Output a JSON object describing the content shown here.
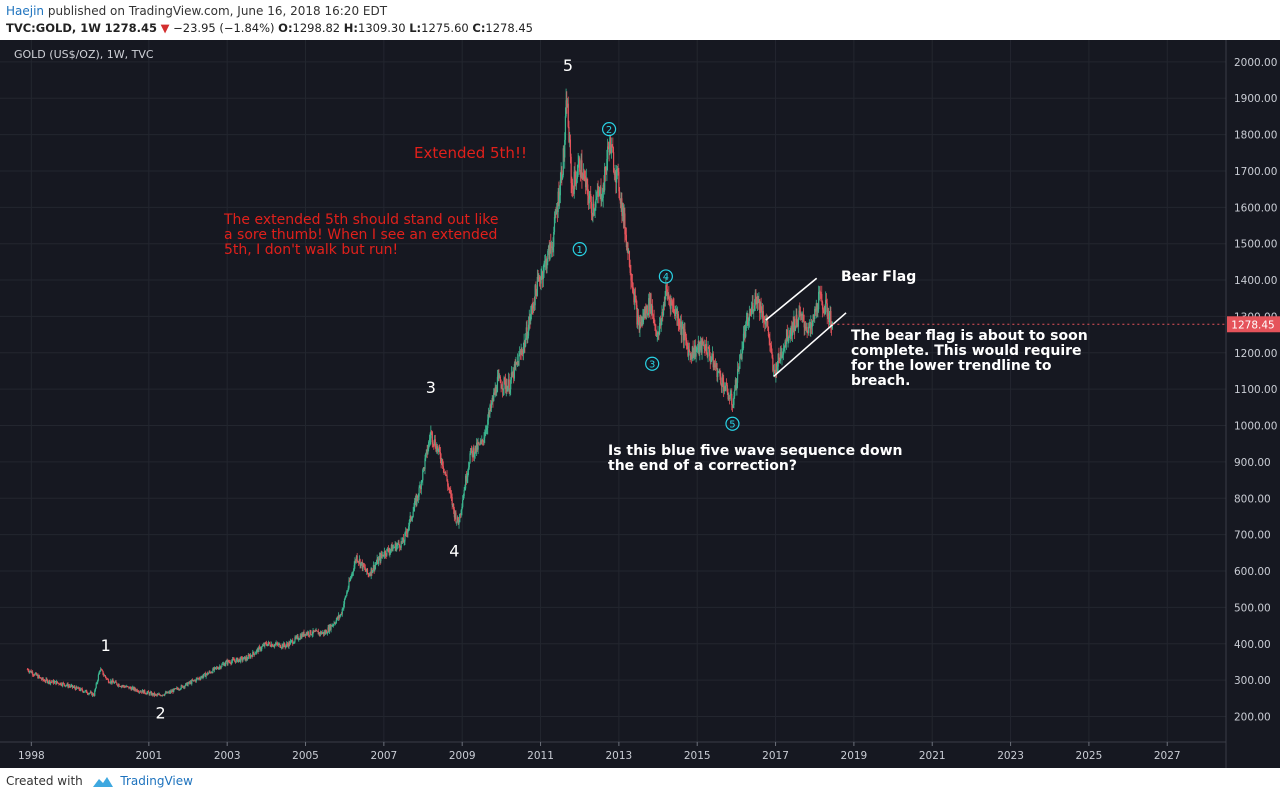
{
  "header": {
    "author": "Haejin",
    "published_text": "published on TradingView.com, June 16, 2018 16:20 EDT",
    "symbol": "TVC:GOLD, 1W",
    "price": "1278.45",
    "change": "−23.95 (−1.84%)",
    "o_label": "O:",
    "o_value": "1298.82",
    "h_label": "H:",
    "h_value": "1309.30",
    "l_label": "L:",
    "l_value": "1275.60",
    "c_label": "C:",
    "c_value": "1278.45"
  },
  "footer": {
    "created_with": "Created with",
    "brand": "TradingView"
  },
  "colors": {
    "background": "#161821",
    "up_candle": "#3bb58f",
    "down_candle": "#e5535a",
    "annotation_red": "#e0201b",
    "annotation_white": "#ffffff",
    "wave_cyan": "#29d2e4",
    "price_tag": "#e5535a"
  },
  "chart_data": {
    "type": "candlestick",
    "legend_title": "GOLD (US$/OZ), 1W, TVC",
    "ylim": [
      130,
      2060
    ],
    "y_ticks": [
      200,
      300,
      400,
      500,
      600,
      700,
      800,
      900,
      1000,
      1100,
      1200,
      1300,
      1400,
      1500,
      1600,
      1700,
      1800,
      1900,
      2000
    ],
    "y_tick_labels": [
      "200.00",
      "300.00",
      "400.00",
      "500.00",
      "600.00",
      "700.00",
      "800.00",
      "900.00",
      "1000.00",
      "1100.00",
      "1200.00",
      "1300.00",
      "1400.00",
      "1500.00",
      "1600.00",
      "1700.00",
      "1800.00",
      "1900.00",
      "2000.00"
    ],
    "xlim": [
      1997.2,
      2028.5
    ],
    "x_ticks": [
      1998,
      2001,
      2003,
      2005,
      2007,
      2009,
      2011,
      2013,
      2015,
      2017,
      2019,
      2021,
      2023,
      2025,
      2027
    ],
    "x_tick_labels": [
      "1998",
      "2001",
      "2003",
      "2005",
      "2007",
      "2009",
      "2011",
      "2013",
      "2015",
      "2017",
      "2019",
      "2021",
      "2023",
      "2025",
      "2027"
    ],
    "last_price": 1278.45,
    "last_price_label": "1278.45",
    "price_path": [
      [
        1997.9,
        330
      ],
      [
        1998.3,
        300
      ],
      [
        1998.8,
        290
      ],
      [
        1999.3,
        272
      ],
      [
        1999.6,
        260
      ],
      [
        1999.75,
        330
      ],
      [
        1999.95,
        300
      ],
      [
        2000.3,
        285
      ],
      [
        2000.8,
        270
      ],
      [
        2001.2,
        258
      ],
      [
        2001.5,
        265
      ],
      [
        2002.0,
        290
      ],
      [
        2002.5,
        318
      ],
      [
        2003.0,
        350
      ],
      [
        2003.5,
        360
      ],
      [
        2004.0,
        400
      ],
      [
        2004.5,
        395
      ],
      [
        2005.0,
        430
      ],
      [
        2005.5,
        430
      ],
      [
        2005.9,
        480
      ],
      [
        2006.3,
        640
      ],
      [
        2006.6,
        590
      ],
      [
        2007.0,
        650
      ],
      [
        2007.5,
        680
      ],
      [
        2007.9,
        820
      ],
      [
        2008.2,
        980
      ],
      [
        2008.5,
        900
      ],
      [
        2008.8,
        760
      ],
      [
        2008.9,
        730
      ],
      [
        2009.2,
        920
      ],
      [
        2009.5,
        950
      ],
      [
        2009.9,
        1120
      ],
      [
        2010.2,
        1110
      ],
      [
        2010.6,
        1230
      ],
      [
        2010.9,
        1380
      ],
      [
        2011.3,
        1500
      ],
      [
        2011.6,
        1750
      ],
      [
        2011.67,
        1900
      ],
      [
        2011.8,
        1650
      ],
      [
        2012.0,
        1720
      ],
      [
        2012.3,
        1600
      ],
      [
        2012.6,
        1650
      ],
      [
        2012.75,
        1780
      ],
      [
        2013.0,
        1660
      ],
      [
        2013.25,
        1470
      ],
      [
        2013.5,
        1270
      ],
      [
        2013.8,
        1340
      ],
      [
        2014.0,
        1240
      ],
      [
        2014.2,
        1370
      ],
      [
        2014.5,
        1300
      ],
      [
        2014.8,
        1200
      ],
      [
        2015.2,
        1220
      ],
      [
        2015.6,
        1130
      ],
      [
        2015.9,
        1060
      ],
      [
        2016.2,
        1250
      ],
      [
        2016.5,
        1360
      ],
      [
        2016.8,
        1270
      ],
      [
        2016.95,
        1140
      ],
      [
        2017.3,
        1250
      ],
      [
        2017.6,
        1300
      ],
      [
        2017.9,
        1260
      ],
      [
        2018.1,
        1350
      ],
      [
        2018.3,
        1320
      ],
      [
        2018.45,
        1278
      ]
    ],
    "annotations": {
      "waves_white": [
        {
          "label": "1",
          "x": 1999.9,
          "y": 380
        },
        {
          "label": "2",
          "x": 2001.3,
          "y": 195
        },
        {
          "label": "3",
          "x": 2008.2,
          "y": 1090
        },
        {
          "label": "4",
          "x": 2008.8,
          "y": 640
        },
        {
          "label": "5",
          "x": 2011.7,
          "y": 1975
        }
      ],
      "waves_cyan": [
        {
          "label": "1",
          "x": 2012.0,
          "y": 1485
        },
        {
          "label": "2",
          "x": 2012.75,
          "y": 1815
        },
        {
          "label": "3",
          "x": 2013.85,
          "y": 1170
        },
        {
          "label": "4",
          "x": 2014.2,
          "y": 1410
        },
        {
          "label": "5",
          "x": 2015.9,
          "y": 1005
        }
      ],
      "texts": {
        "extended_5th": "Extended 5th!!",
        "red_note": [
          "The extended 5th should stand out like",
          "a sore thumb! When I see an extended",
          "5th, I don't walk but run!"
        ],
        "bear_flag": "Bear Flag",
        "bear_note": [
          "The bear flag is about to soon",
          "complete. This would require",
          "for the lower trendline to",
          "breach."
        ],
        "blue_question": [
          "Is this blue five wave sequence down",
          "the end of a correction?"
        ]
      },
      "trendlines": [
        {
          "name": "upper",
          "from": [
            2016.75,
            1290
          ],
          "to": [
            2018.05,
            1405
          ]
        },
        {
          "name": "lower",
          "from": [
            2016.95,
            1135
          ],
          "to": [
            2018.8,
            1310
          ]
        }
      ]
    }
  }
}
